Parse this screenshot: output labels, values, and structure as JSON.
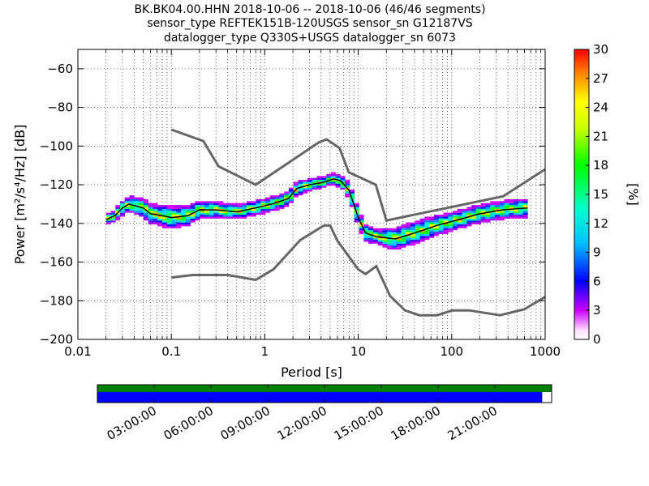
{
  "chart_data": {
    "type": "heatmap",
    "title_lines": [
      "BK.BK04.00.HHN   2018-10-06 -- 2018-10-06  (46/46 segments)",
      "sensor_type REFTEK151B-120USGS sensor_sn G12187VS",
      "datalogger_type Q330S+USGS datalogger_sn 6073"
    ],
    "xlabel": "Period [s]",
    "ylabel": "Power [m²/s⁴/Hz] [dB]",
    "x_scale": "log",
    "xlim": [
      0.01,
      1000
    ],
    "ylim": [
      -200,
      -50
    ],
    "x_ticks": [
      {
        "value": 0.01,
        "label": "0.01"
      },
      {
        "value": 0.1,
        "label": "0.1"
      },
      {
        "value": 1,
        "label": "1"
      },
      {
        "value": 10,
        "label": "10"
      },
      {
        "value": 100,
        "label": "100"
      },
      {
        "value": 1000,
        "label": "1000"
      }
    ],
    "y_ticks": [
      -200,
      -180,
      -160,
      -140,
      -120,
      -100,
      -80,
      -60
    ],
    "grid": true,
    "colorbar": {
      "label": "[%]",
      "min": 0,
      "max": 30,
      "ticks": [
        0,
        3,
        6,
        9,
        12,
        15,
        18,
        21,
        24,
        27,
        30
      ],
      "colormap": "pqlx"
    },
    "noise_model_high": [
      [
        0.1,
        -91.5
      ],
      [
        0.22,
        -97.4
      ],
      [
        0.32,
        -110.5
      ],
      [
        0.8,
        -120.0
      ],
      [
        3.8,
        -98.0
      ],
      [
        4.6,
        -96.5
      ],
      [
        6.3,
        -101.0
      ],
      [
        7.9,
        -113.5
      ],
      [
        15.4,
        -120.0
      ],
      [
        20.0,
        -138.5
      ],
      [
        354.8,
        -126.0
      ],
      [
        1000,
        -112.0
      ]
    ],
    "noise_model_low": [
      [
        0.1,
        -168.0
      ],
      [
        0.17,
        -166.7
      ],
      [
        0.4,
        -166.7
      ],
      [
        0.8,
        -169.2
      ],
      [
        1.24,
        -163.7
      ],
      [
        2.4,
        -148.6
      ],
      [
        4.3,
        -141.1
      ],
      [
        5.0,
        -141.1
      ],
      [
        6.0,
        -149.0
      ],
      [
        10.0,
        -163.8
      ],
      [
        12.0,
        -166.2
      ],
      [
        15.6,
        -162.1
      ],
      [
        21.9,
        -177.5
      ],
      [
        31.6,
        -185.0
      ],
      [
        45.0,
        -187.5
      ],
      [
        70.0,
        -187.5
      ],
      [
        101.0,
        -185.0
      ],
      [
        154.0,
        -185.0
      ],
      [
        328.0,
        -187.5
      ],
      [
        600.0,
        -184.4
      ],
      [
        1000,
        -178.0
      ]
    ],
    "psd_mean": [
      [
        0.02,
        -138
      ],
      [
        0.025,
        -136
      ],
      [
        0.03,
        -132
      ],
      [
        0.035,
        -130
      ],
      [
        0.05,
        -132
      ],
      [
        0.06,
        -135
      ],
      [
        0.08,
        -136
      ],
      [
        0.1,
        -137
      ],
      [
        0.15,
        -136
      ],
      [
        0.2,
        -133
      ],
      [
        0.3,
        -133
      ],
      [
        0.5,
        -134
      ],
      [
        0.8,
        -132
      ],
      [
        1.2,
        -130
      ],
      [
        1.8,
        -127
      ],
      [
        2.2,
        -122
      ],
      [
        3.0,
        -120
      ],
      [
        4.0,
        -119
      ],
      [
        5.5,
        -117
      ],
      [
        6.5,
        -118
      ],
      [
        8.0,
        -123
      ],
      [
        10.0,
        -137
      ],
      [
        12.0,
        -145
      ],
      [
        16.0,
        -147
      ],
      [
        25.0,
        -148
      ],
      [
        40.0,
        -145
      ],
      [
        70.0,
        -141
      ],
      [
        120.0,
        -138
      ],
      [
        200.0,
        -135
      ],
      [
        350.0,
        -133
      ],
      [
        650.0,
        -132
      ]
    ],
    "psd_spread_db": [
      [
        0.02,
        2
      ],
      [
        0.03,
        3
      ],
      [
        0.05,
        4
      ],
      [
        0.1,
        5
      ],
      [
        0.2,
        4
      ],
      [
        0.5,
        3
      ],
      [
        1.0,
        3
      ],
      [
        2.0,
        3
      ],
      [
        5.0,
        2
      ],
      [
        10.0,
        4
      ],
      [
        15.0,
        3
      ],
      [
        25.0,
        5
      ],
      [
        50.0,
        5
      ],
      [
        100.0,
        4
      ],
      [
        300.0,
        4
      ],
      [
        650.0,
        4
      ]
    ],
    "time_axis": {
      "ticks": [
        "03:00:00",
        "06:00:00",
        "09:00:00",
        "12:00:00",
        "15:00:00",
        "18:00:00",
        "21:00:00"
      ],
      "tick_hours": [
        3,
        6,
        9,
        12,
        15,
        18,
        21
      ],
      "range_hours": [
        0,
        24
      ],
      "segments_available_until_hours": 24,
      "segments_used_until_hours": 23.5,
      "color_available": "#008000",
      "color_used": "#0000ff"
    }
  }
}
